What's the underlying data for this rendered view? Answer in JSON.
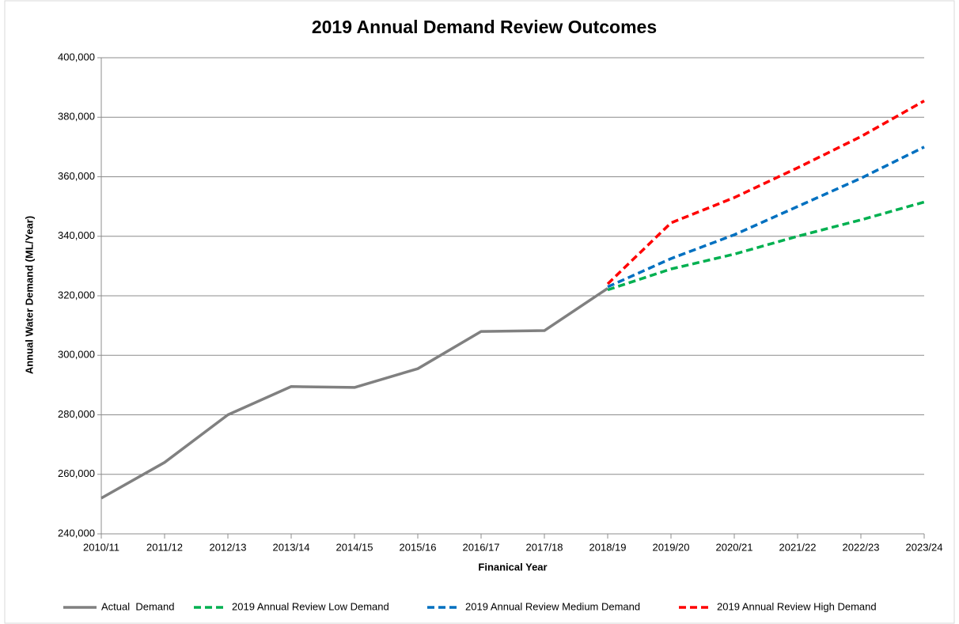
{
  "chart_data": {
    "type": "line",
    "title": "2019 Annual Demand Review Outcomes",
    "x_label": "Finanical Year",
    "y_label": "Annual Water Demand (ML/Year)",
    "categories": [
      "2010/11",
      "2011/12",
      "2012/13",
      "2013/14",
      "2014/15",
      "2015/16",
      "2016/17",
      "2017/18",
      "2018/19",
      "2019/20",
      "2020/21",
      "2021/22",
      "2022/23",
      "2023/24"
    ],
    "ylim": [
      240000,
      400000
    ],
    "yticks": [
      {
        "value": 240000,
        "label": "240,000"
      },
      {
        "value": 260000,
        "label": "260,000"
      },
      {
        "value": 280000,
        "label": "280,000"
      },
      {
        "value": 300000,
        "label": "300,000"
      },
      {
        "value": 320000,
        "label": "320,000"
      },
      {
        "value": 340000,
        "label": "340,000"
      },
      {
        "value": 360000,
        "label": "360,000"
      },
      {
        "value": 380000,
        "label": "380,000"
      },
      {
        "value": 400000,
        "label": "400,000"
      }
    ],
    "grid": true,
    "legend": "bottom",
    "series": [
      {
        "name": "Actual  Demand",
        "color": "#808080",
        "dashed": false,
        "values": [
          252000,
          264000,
          280000,
          289500,
          289200,
          295500,
          308000,
          308300,
          322500,
          null,
          null,
          null,
          null,
          null
        ]
      },
      {
        "name": "2019 Annual Review Low Demand",
        "color": "#00b050",
        "dashed": true,
        "values": [
          null,
          null,
          null,
          null,
          null,
          null,
          null,
          null,
          322000,
          329000,
          334000,
          340000,
          345500,
          351500
        ]
      },
      {
        "name": "2019 Annual Review Medium Demand",
        "color": "#0070c0",
        "dashed": true,
        "values": [
          null,
          null,
          null,
          null,
          null,
          null,
          null,
          null,
          323000,
          332500,
          340500,
          350000,
          359500,
          370000
        ]
      },
      {
        "name": "2019 Annual Review High Demand",
        "color": "#ff0000",
        "dashed": true,
        "values": [
          null,
          null,
          null,
          null,
          null,
          null,
          null,
          null,
          324000,
          344500,
          353000,
          363000,
          373500,
          385500
        ]
      }
    ]
  }
}
